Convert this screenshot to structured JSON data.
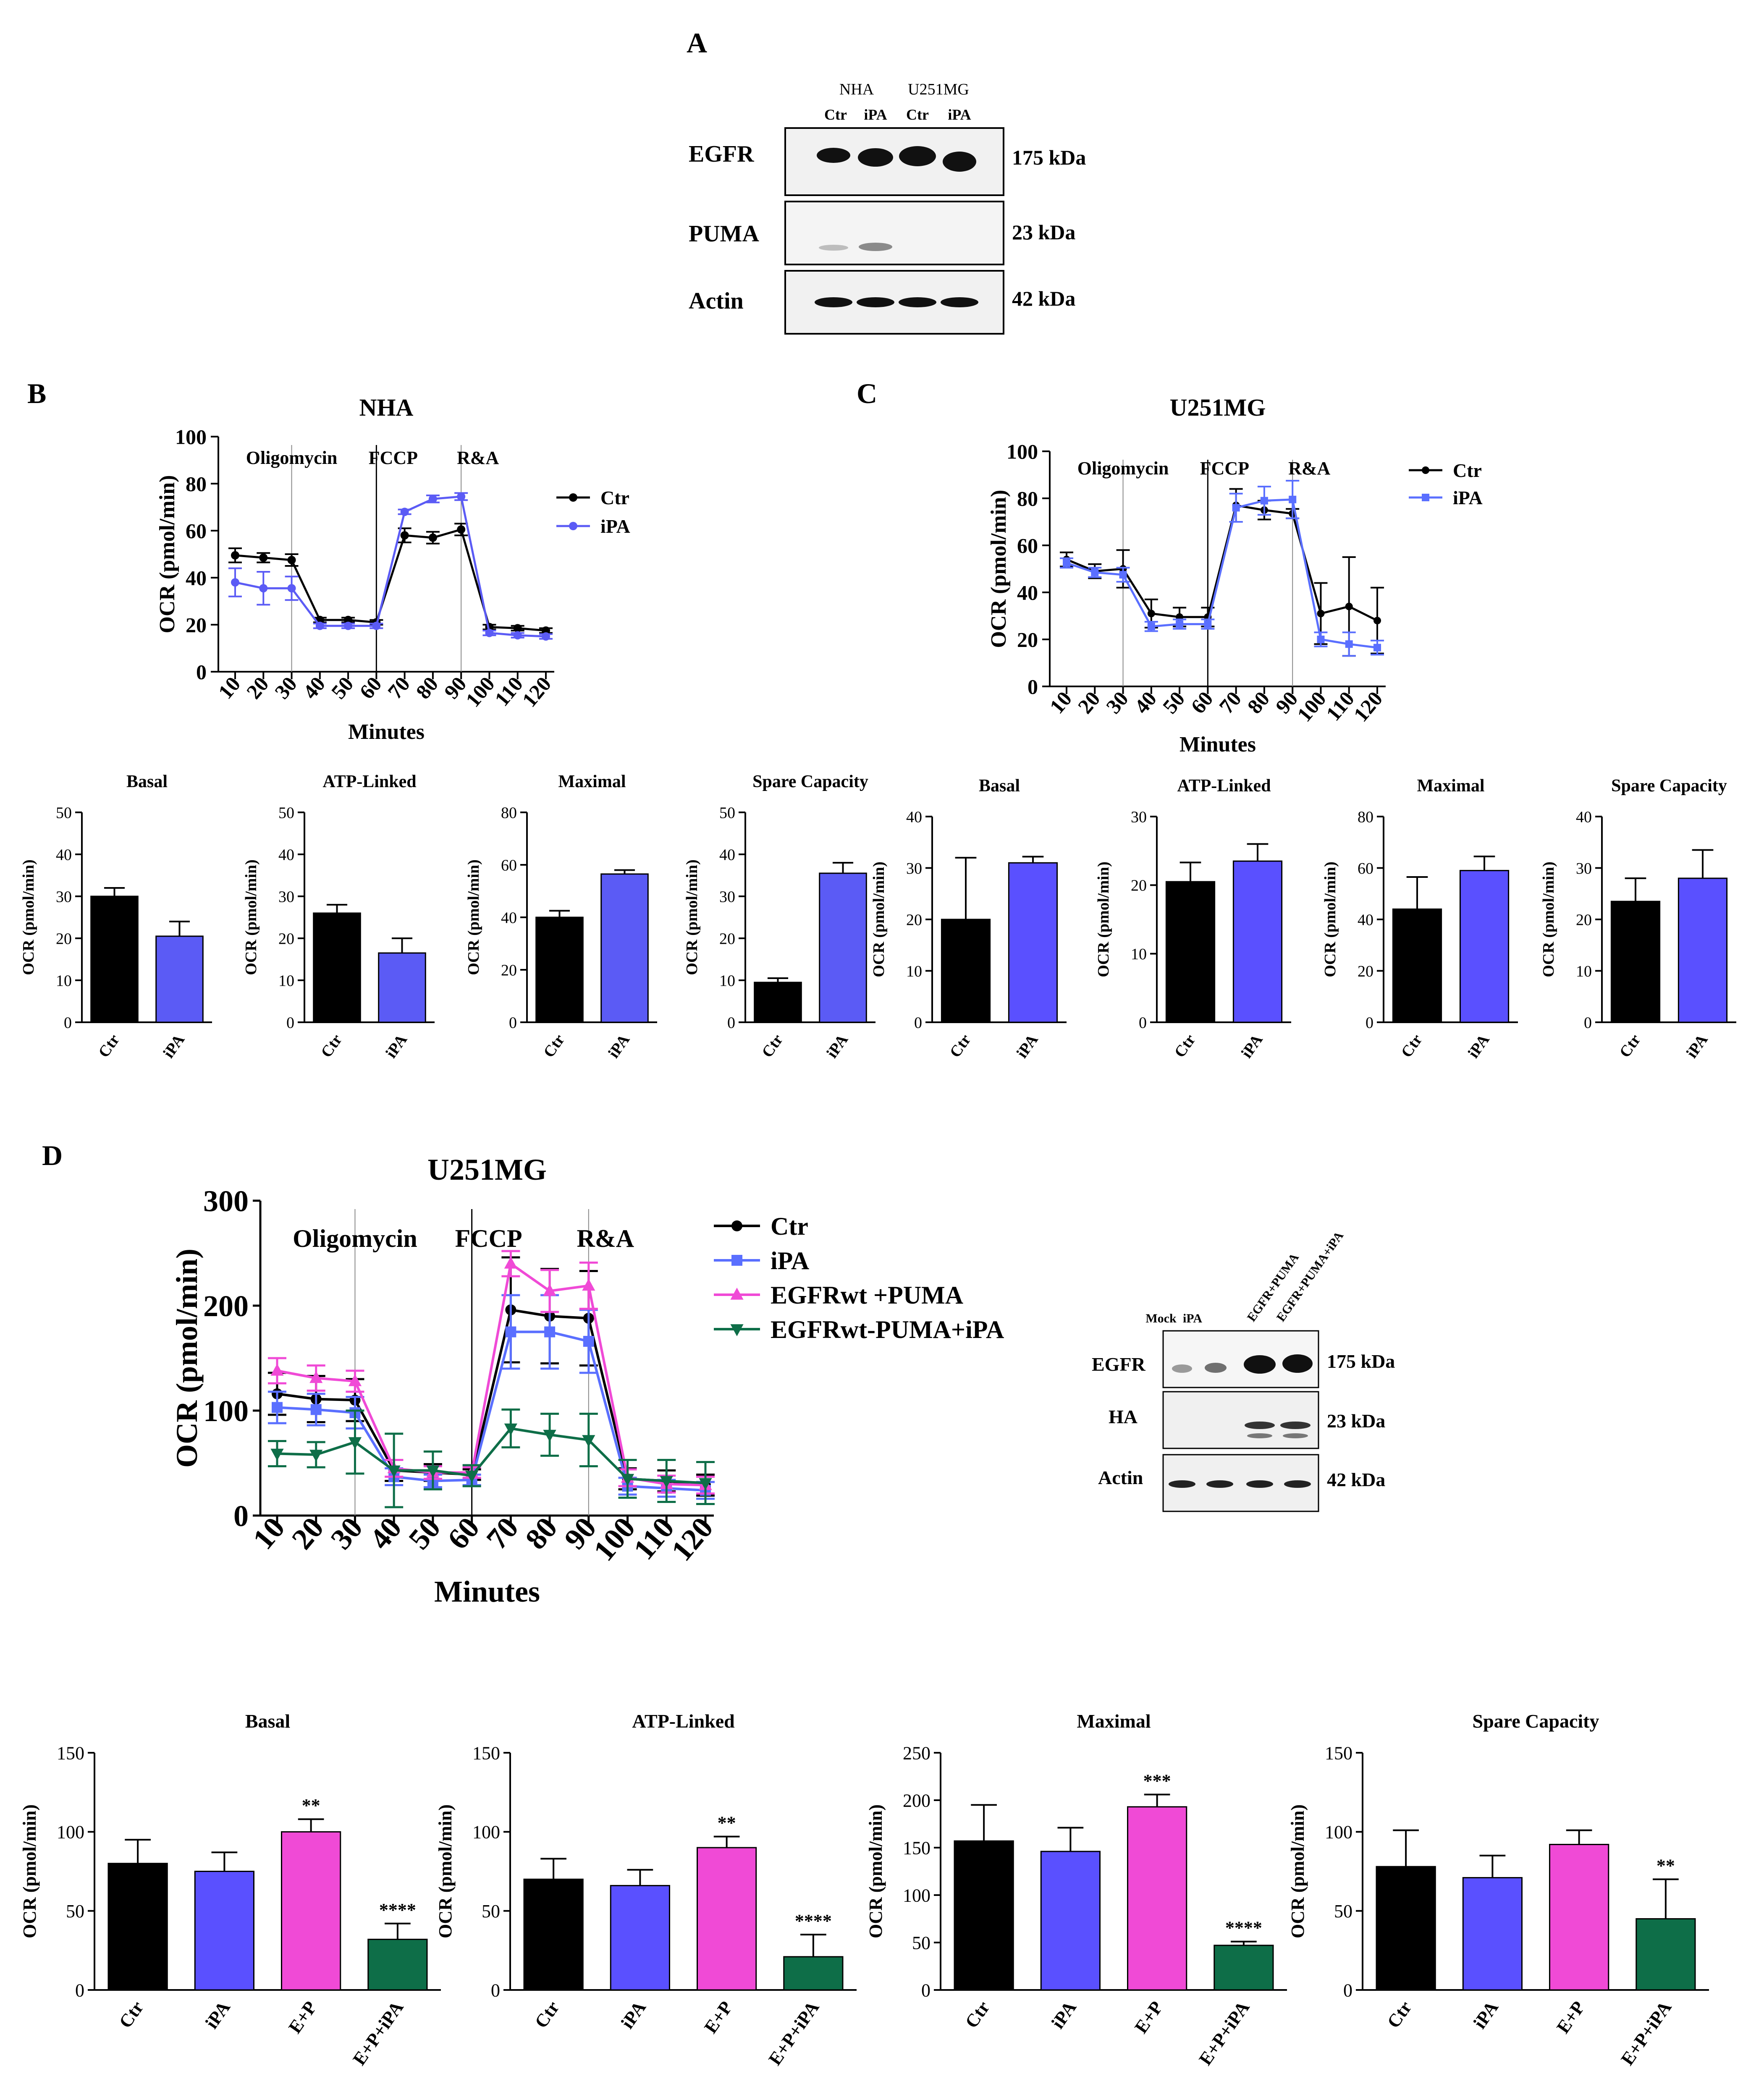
{
  "panels": {
    "A": {
      "letter": "A",
      "blot": {
        "group_labels": [
          "NHA",
          "U251MG"
        ],
        "lane_labels": [
          "Ctr",
          "iPA",
          "Ctr",
          "iPA"
        ],
        "rows": [
          {
            "label": "EGFR",
            "kda": "175 kDa"
          },
          {
            "label": "PUMA",
            "kda": "23 kDa"
          },
          {
            "label": "Actin",
            "kda": "42 kDa"
          }
        ]
      }
    },
    "B": {
      "letter": "B"
    },
    "C": {
      "letter": "C"
    },
    "D": {
      "letter": "D",
      "blot": {
        "lane_labels": [
          "Mock",
          "iPA",
          "EGFR+PUMA",
          "EGFR+PUMA+iPA"
        ],
        "rows": [
          {
            "label": "EGFR",
            "kda": "175 kDa"
          },
          {
            "label": "HA",
            "kda": "23 kDa"
          },
          {
            "label": "Actin",
            "kda": "42 kDa"
          }
        ]
      }
    }
  },
  "colors": {
    "ctr": "#000000",
    "ipa_b": "#5b5bf5",
    "ipa_c": "#5a6fff",
    "egfr_puma": "#f04ad6",
    "egfr_puma_ipa": "#0e6e48"
  },
  "chart_data": [
    {
      "id": "B-line",
      "panel": "B",
      "type": "line",
      "title": "NHA",
      "xlabel": "Minutes",
      "ylabel": "OCR (pmol/min)",
      "ylim": [
        0,
        100
      ],
      "yticks": [
        0,
        20,
        40,
        60,
        80,
        100
      ],
      "x": [
        10,
        20,
        30,
        40,
        50,
        60,
        70,
        80,
        90,
        100,
        110,
        120
      ],
      "injections": [
        {
          "label": "Oligomycin",
          "x": 30
        },
        {
          "label": "FCCP",
          "x": 60
        },
        {
          "label": "R&A",
          "x": 90
        }
      ],
      "legend": "right",
      "series": [
        {
          "name": "Ctr",
          "color": "#000000",
          "marker": "circle",
          "values": [
            49.5,
            48.5,
            47.5,
            22,
            22,
            21,
            58,
            57,
            60.5,
            19,
            18.5,
            17.5
          ],
          "errors": [
            3,
            2,
            2.5,
            1,
            1,
            1,
            3,
            2.5,
            2.5,
            1,
            1,
            1
          ]
        },
        {
          "name": "iPA",
          "color": "#5b5bf5",
          "marker": "circle",
          "values": [
            38,
            35.5,
            35.5,
            19.5,
            19.5,
            19.5,
            68,
            73.5,
            74.5,
            16.5,
            15.5,
            15
          ],
          "errors": [
            6,
            7,
            5,
            1,
            1,
            1,
            1,
            1.5,
            1.5,
            1,
            1,
            1
          ]
        }
      ]
    },
    {
      "id": "C-line",
      "panel": "C",
      "type": "line",
      "title": "U251MG",
      "xlabel": "Minutes",
      "ylabel": "OCR (pmol/min)",
      "ylim": [
        0,
        100
      ],
      "yticks": [
        0,
        20,
        40,
        60,
        80,
        100
      ],
      "x": [
        10,
        20,
        30,
        40,
        50,
        60,
        70,
        80,
        90,
        100,
        110,
        120
      ],
      "injections": [
        {
          "label": "Oligomycin",
          "x": 30
        },
        {
          "label": "FCCP",
          "x": 60
        },
        {
          "label": "R&A",
          "x": 90
        }
      ],
      "legend": "right",
      "series": [
        {
          "name": "Ctr",
          "color": "#000000",
          "marker": "circle",
          "values": [
            54,
            49,
            50,
            31,
            29.5,
            29.5,
            77,
            75,
            73.5,
            31,
            34,
            28
          ],
          "errors": [
            3,
            3,
            8,
            6,
            4,
            4,
            7,
            4,
            2,
            13,
            21,
            14
          ]
        },
        {
          "name": "iPA",
          "color": "#5a6fff",
          "marker": "square",
          "values": [
            52.5,
            48.5,
            47.5,
            25.5,
            26.5,
            26.5,
            76,
            79,
            79.5,
            20,
            18,
            16.5
          ],
          "errors": [
            2,
            2,
            3,
            2,
            2,
            2,
            6,
            6,
            8,
            3,
            5,
            3
          ]
        }
      ]
    },
    {
      "id": "B-basal",
      "panel": "B",
      "type": "bar",
      "title": "Basal",
      "ylabel": "OCR (pmol/min)",
      "ylim": [
        0,
        50
      ],
      "yticks": [
        0,
        10,
        20,
        30,
        40,
        50
      ],
      "categories": [
        "Ctr",
        "iPA"
      ],
      "values": [
        30,
        20.5
      ],
      "errors": [
        2,
        3.5
      ],
      "colors": [
        "#000000",
        "#5b5bf5"
      ],
      "stars": [
        "",
        ""
      ]
    },
    {
      "id": "B-atp",
      "panel": "B",
      "type": "bar",
      "title": "ATP-Linked",
      "ylabel": "OCR (pmol/min)",
      "ylim": [
        0,
        50
      ],
      "yticks": [
        0,
        10,
        20,
        30,
        40,
        50
      ],
      "categories": [
        "Ctr",
        "iPA"
      ],
      "values": [
        26,
        16.5
      ],
      "errors": [
        2,
        3.5
      ],
      "colors": [
        "#000000",
        "#5b5bf5"
      ],
      "stars": [
        "",
        ""
      ]
    },
    {
      "id": "B-max",
      "panel": "B",
      "type": "bar",
      "title": "Maximal",
      "ylabel": "OCR (pmol/min)",
      "ylim": [
        0,
        80
      ],
      "yticks": [
        0,
        20,
        40,
        60,
        80
      ],
      "categories": [
        "Ctr",
        "iPA"
      ],
      "values": [
        40,
        56.5
      ],
      "errors": [
        2.5,
        1.5
      ],
      "colors": [
        "#000000",
        "#5b5bf5"
      ],
      "stars": [
        "",
        ""
      ]
    },
    {
      "id": "B-spare",
      "panel": "B",
      "type": "bar",
      "title": "Spare Capacity",
      "ylabel": "OCR (pmol/min)",
      "ylim": [
        0,
        50
      ],
      "yticks": [
        0,
        10,
        20,
        30,
        40,
        50
      ],
      "categories": [
        "Ctr",
        "iPA"
      ],
      "values": [
        9.5,
        35.5
      ],
      "errors": [
        1,
        2.5
      ],
      "colors": [
        "#000000",
        "#5b5bf5"
      ],
      "stars": [
        "",
        ""
      ]
    },
    {
      "id": "C-basal",
      "panel": "C",
      "type": "bar",
      "title": "Basal",
      "ylabel": "OCR (pmol/min)",
      "ylim": [
        0,
        40
      ],
      "yticks": [
        0,
        10,
        20,
        30,
        40
      ],
      "categories": [
        "Ctr",
        "iPA"
      ],
      "values": [
        20,
        31
      ],
      "errors": [
        12,
        1.2
      ],
      "colors": [
        "#000000",
        "#5a50ff"
      ],
      "stars": [
        "",
        ""
      ]
    },
    {
      "id": "C-atp",
      "panel": "C",
      "type": "bar",
      "title": "ATP-Linked",
      "ylabel": "OCR (pmol/min)",
      "ylim": [
        0,
        30
      ],
      "yticks": [
        0,
        10,
        20,
        30
      ],
      "categories": [
        "Ctr",
        "iPA"
      ],
      "values": [
        20.5,
        23.5
      ],
      "errors": [
        2.8,
        2.5
      ],
      "colors": [
        "#000000",
        "#5a50ff"
      ],
      "stars": [
        "",
        ""
      ]
    },
    {
      "id": "C-max",
      "panel": "C",
      "type": "bar",
      "title": "Maximal",
      "ylabel": "OCR (pmol/min)",
      "ylim": [
        0,
        80
      ],
      "yticks": [
        0,
        20,
        40,
        60,
        80
      ],
      "categories": [
        "Ctr",
        "iPA"
      ],
      "values": [
        44,
        59
      ],
      "errors": [
        12.5,
        5.5
      ],
      "colors": [
        "#000000",
        "#5a50ff"
      ],
      "stars": [
        "",
        ""
      ]
    },
    {
      "id": "C-spare",
      "panel": "C",
      "type": "bar",
      "title": "Spare Capacity",
      "ylabel": "OCR (pmol/min)",
      "ylim": [
        0,
        40
      ],
      "yticks": [
        0,
        10,
        20,
        30,
        40
      ],
      "categories": [
        "Ctr",
        "iPA"
      ],
      "values": [
        23.5,
        28
      ],
      "errors": [
        4.5,
        5.5
      ],
      "colors": [
        "#000000",
        "#5a50ff"
      ],
      "stars": [
        "",
        ""
      ]
    },
    {
      "id": "D-line",
      "panel": "D",
      "type": "line",
      "title": "U251MG",
      "xlabel": "Minutes",
      "ylabel": "OCR (pmol/min)",
      "ylim": [
        0,
        300
      ],
      "yticks": [
        0,
        100,
        200,
        300
      ],
      "x": [
        10,
        20,
        30,
        40,
        50,
        60,
        70,
        80,
        90,
        100,
        110,
        120
      ],
      "injections": [
        {
          "label": "Oligomycin",
          "x": 30
        },
        {
          "label": "FCCP",
          "x": 60
        },
        {
          "label": "R&A",
          "x": 90
        }
      ],
      "legend": "right",
      "series": [
        {
          "name": "Ctr",
          "color": "#000000",
          "marker": "circle",
          "values": [
            116,
            111,
            110,
            43,
            41,
            39,
            196,
            190,
            188,
            35,
            33,
            29
          ],
          "errors": [
            20,
            22,
            20,
            10,
            8,
            5,
            50,
            45,
            45,
            10,
            10,
            10
          ]
        },
        {
          "name": "iPA",
          "color": "#5a6fff",
          "marker": "square",
          "values": [
            103,
            101,
            98,
            37,
            33,
            34,
            175,
            175,
            166,
            28,
            26,
            24
          ],
          "errors": [
            15,
            15,
            15,
            8,
            6,
            5,
            35,
            35,
            30,
            8,
            8,
            8
          ]
        },
        {
          "name": "EGFRwt +PUMA",
          "color": "#f04ad6",
          "marker": "triangle-up",
          "values": [
            138,
            131,
            128,
            45,
            41,
            41,
            240,
            214,
            219,
            36,
            30,
            29
          ],
          "errors": [
            12,
            12,
            10,
            8,
            6,
            5,
            12,
            20,
            22,
            8,
            8,
            8
          ]
        },
        {
          "name": "EGFRwt-PUMA+iPA",
          "color": "#0e6e48",
          "marker": "triangle-down",
          "values": [
            59,
            58,
            70,
            43,
            43,
            38,
            83,
            77,
            72,
            35,
            33,
            31
          ],
          "errors": [
            12,
            12,
            30,
            35,
            18,
            10,
            18,
            20,
            25,
            18,
            20,
            20
          ]
        }
      ]
    },
    {
      "id": "D-basal",
      "panel": "D",
      "type": "bar",
      "title": "Basal",
      "ylabel": "OCR (pmol/min)",
      "ylim": [
        0,
        150
      ],
      "yticks": [
        0,
        50,
        100,
        150
      ],
      "categories": [
        "Ctr",
        "iPA",
        "E+P",
        "E+P+iPA"
      ],
      "values": [
        80,
        75,
        100,
        32
      ],
      "errors": [
        15,
        12,
        8,
        10
      ],
      "colors": [
        "#000000",
        "#5a50ff",
        "#f04ad6",
        "#0e6e48"
      ],
      "stars": [
        "",
        "",
        "**",
        "****"
      ]
    },
    {
      "id": "D-atp",
      "panel": "D",
      "type": "bar",
      "title": "ATP-Linked",
      "ylabel": "OCR (pmol/min)",
      "ylim": [
        0,
        150
      ],
      "yticks": [
        0,
        50,
        100,
        150
      ],
      "categories": [
        "Ctr",
        "iPA",
        "E+P",
        "E+P+iPA"
      ],
      "values": [
        70,
        66,
        90,
        21
      ],
      "errors": [
        13,
        10,
        7,
        14
      ],
      "colors": [
        "#000000",
        "#5a50ff",
        "#f04ad6",
        "#0e6e48"
      ],
      "stars": [
        "",
        "",
        "**",
        "****"
      ]
    },
    {
      "id": "D-max",
      "panel": "D",
      "type": "bar",
      "title": "Maximal",
      "ylabel": "OCR (pmol/min)",
      "ylim": [
        0,
        250
      ],
      "yticks": [
        0,
        50,
        100,
        150,
        200,
        250
      ],
      "categories": [
        "Ctr",
        "iPA",
        "E+P",
        "E+P+iPA"
      ],
      "values": [
        157,
        146,
        193,
        47
      ],
      "errors": [
        38,
        25,
        13,
        4
      ],
      "colors": [
        "#000000",
        "#5a50ff",
        "#f04ad6",
        "#0e6e48"
      ],
      "stars": [
        "",
        "",
        "***",
        "****"
      ]
    },
    {
      "id": "D-spare",
      "panel": "D",
      "type": "bar",
      "title": "Spare Capacity",
      "ylabel": "OCR (pmol/min)",
      "ylim": [
        0,
        150
      ],
      "yticks": [
        0,
        50,
        100,
        150
      ],
      "categories": [
        "Ctr",
        "iPA",
        "E+P",
        "E+P+iPA"
      ],
      "values": [
        78,
        71,
        92,
        45
      ],
      "errors": [
        23,
        14,
        9,
        25
      ],
      "colors": [
        "#000000",
        "#5a50ff",
        "#f04ad6",
        "#0e6e48"
      ],
      "stars": [
        "",
        "",
        "",
        "**"
      ]
    }
  ]
}
